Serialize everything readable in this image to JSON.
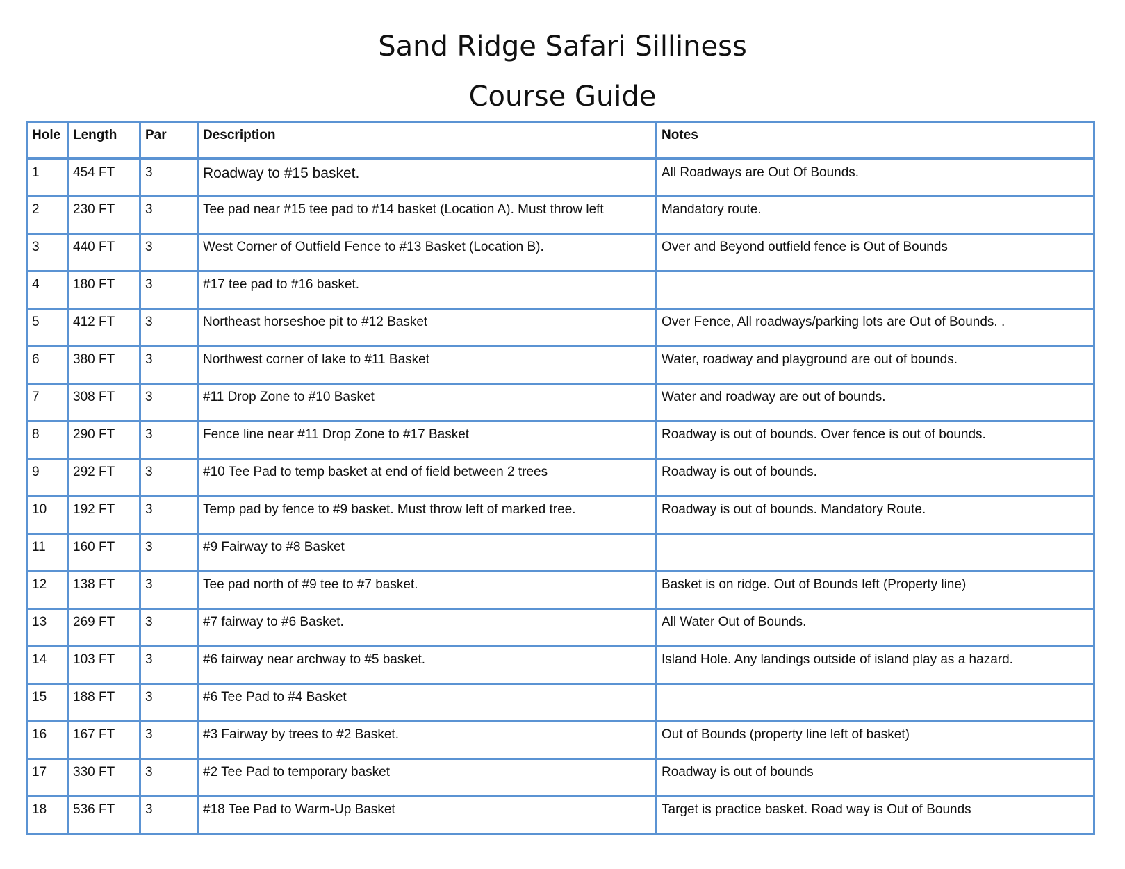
{
  "title_line1": "Sand Ridge Safari Silliness",
  "title_line2": "Course Guide",
  "colors": {
    "border": "#5b93d3"
  },
  "table": {
    "headers": [
      "Hole",
      "Length",
      "Par",
      "Description",
      "Notes"
    ],
    "rows": [
      [
        "1",
        "454 FT",
        "3",
        "Roadway to #15 basket.",
        "All Roadways are Out Of Bounds."
      ],
      [
        "2",
        "230 FT",
        "3",
        "Tee pad near #15 tee pad to #14 basket (Location A).  Must throw left",
        "Mandatory route."
      ],
      [
        "3",
        "440 FT",
        "3",
        "West Corner of Outfield Fence to #13 Basket (Location B).",
        "Over and Beyond outfield fence is Out of Bounds"
      ],
      [
        "4",
        "180 FT",
        "3",
        "#17 tee pad to #16 basket.",
        ""
      ],
      [
        "5",
        "412 FT",
        "3",
        "Northeast horseshoe pit to #12 Basket",
        "Over Fence, All roadways/parking lots are Out of Bounds. ."
      ],
      [
        "6",
        "380 FT",
        "3",
        "Northwest corner of lake to #11 Basket",
        "Water, roadway and playground are out of bounds."
      ],
      [
        "7",
        "308 FT",
        "3",
        "#11 Drop Zone to #10 Basket",
        "Water and roadway are out of bounds."
      ],
      [
        "8",
        "290 FT",
        "3",
        "Fence line near #11 Drop Zone to #17 Basket",
        "Roadway is out of bounds.  Over fence is out of bounds."
      ],
      [
        "9",
        "292 FT",
        "3",
        "#10 Tee Pad to temp basket at end of field between 2 trees",
        "Roadway is out of bounds."
      ],
      [
        "10",
        "192 FT",
        "3",
        "Temp pad by fence to #9 basket.  Must throw left of marked tree.",
        "Roadway is out of bounds.  Mandatory Route."
      ],
      [
        "11",
        "160 FT",
        "3",
        "#9 Fairway to #8 Basket",
        ""
      ],
      [
        "12",
        "138 FT",
        "3",
        "Tee pad north of #9 tee to #7 basket.",
        "Basket is on ridge.  Out of Bounds left (Property line)"
      ],
      [
        "13",
        "269 FT",
        "3",
        "#7 fairway to #6 Basket.",
        "All Water Out of Bounds."
      ],
      [
        "14",
        "103 FT",
        "3",
        "#6 fairway near archway to #5 basket.",
        "Island Hole.  Any landings outside of island play as a hazard."
      ],
      [
        "15",
        "188 FT",
        "3",
        "#6 Tee Pad to #4 Basket",
        ""
      ],
      [
        "16",
        "167 FT",
        "3",
        "#3 Fairway by trees to #2 Basket.",
        "Out of Bounds (property line left of basket)"
      ],
      [
        "17",
        "330 FT",
        "3",
        "#2 Tee Pad to temporary basket",
        "Roadway is out of bounds"
      ],
      [
        "18",
        "536 FT",
        "3",
        "#18 Tee Pad to Warm-Up Basket",
        "Target is practice basket.  Road way is Out of Bounds"
      ]
    ]
  }
}
